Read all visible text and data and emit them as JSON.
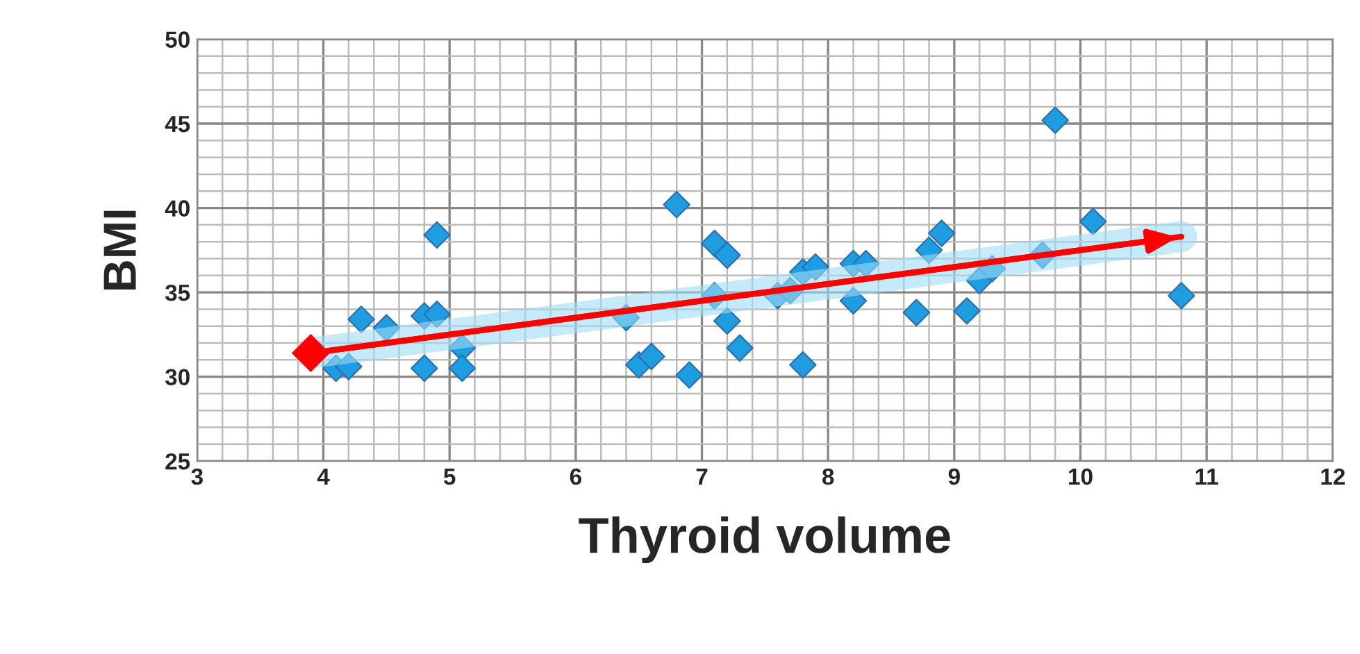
{
  "chart_data": {
    "type": "scatter",
    "xlabel": "Thyroid volume",
    "ylabel": "BMI",
    "xlim": [
      3,
      12
    ],
    "ylim": [
      25,
      50
    ],
    "xticks": [
      3,
      4,
      5,
      6,
      7,
      8,
      9,
      10,
      11,
      12
    ],
    "yticks": [
      25,
      30,
      35,
      40,
      45,
      50
    ],
    "grid": true,
    "marker": "diamond",
    "legend": false,
    "series": [
      {
        "color": "#1e9de0",
        "x": [
          4.1,
          4.2,
          4.3,
          4.5,
          4.8,
          4.8,
          4.9,
          4.9,
          5.1,
          5.1,
          6.4,
          6.5,
          6.6,
          6.8,
          6.9,
          7.1,
          7.1,
          7.2,
          7.2,
          7.3,
          7.6,
          7.7,
          7.8,
          7.8,
          7.9,
          8.2,
          8.2,
          8.3,
          8.7,
          8.8,
          8.9,
          9.1,
          9.2,
          9.3,
          9.7,
          9.8,
          10.1,
          10.8
        ],
        "values": [
          30.5,
          30.6,
          33.4,
          32.9,
          33.6,
          30.5,
          38.4,
          33.7,
          31.7,
          30.5,
          33.5,
          30.7,
          31.2,
          40.2,
          30.1,
          37.9,
          34.8,
          37.2,
          33.3,
          31.7,
          34.8,
          35.1,
          36.2,
          30.7,
          36.5,
          36.7,
          34.5,
          36.7,
          33.8,
          37.5,
          38.5,
          33.9,
          35.7,
          36.4,
          37.2,
          45.2,
          39.2,
          34.8
        ]
      },
      {
        "type": "line",
        "color": "#ff0000",
        "x": [
          3.9,
          10.8
        ],
        "values": [
          31.4,
          38.3
        ]
      }
    ]
  }
}
